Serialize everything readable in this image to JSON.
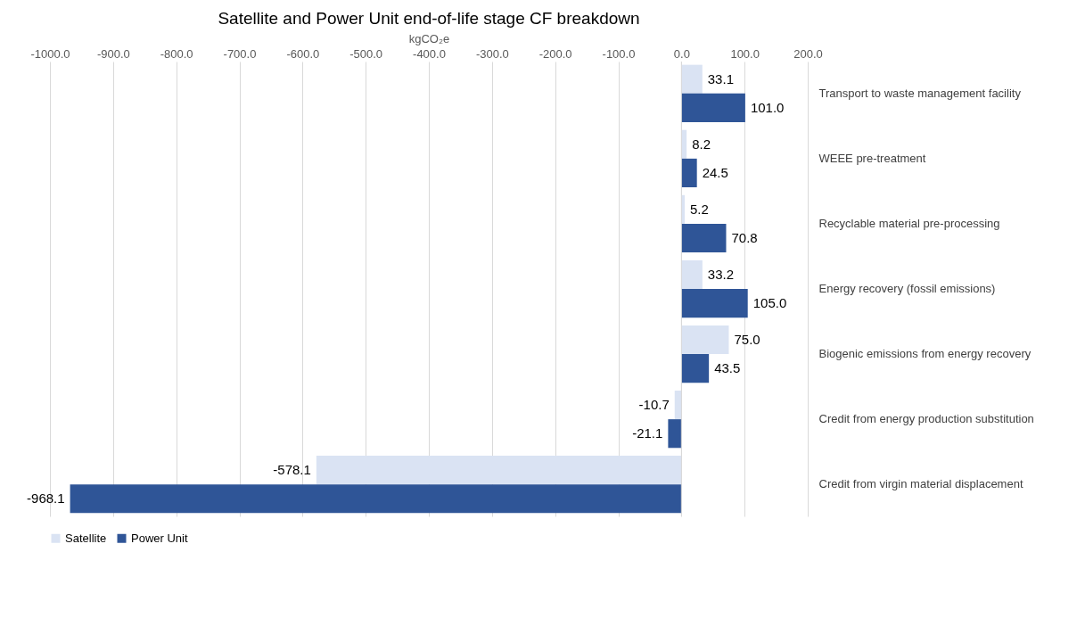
{
  "chart_data": {
    "type": "bar",
    "orientation": "horizontal",
    "title": "Satellite and Power Unit end-of-life stage CF breakdown",
    "xlabel": "kgCO₂e",
    "categories": [
      "Transport to waste management facility",
      "WEEE pre-treatment",
      "Recyclable material pre-processing",
      "Energy recovery (fossil emissions)",
      "Biogenic emissions from energy recovery",
      "Credit from energy production substitution",
      "Credit from virgin material displacement"
    ],
    "series": [
      {
        "name": "Satellite",
        "color": "#dae3f3",
        "values": [
          33.1,
          8.2,
          5.2,
          33.2,
          75.0,
          -10.7,
          -578.1
        ],
        "value_labels": [
          "33.1",
          "8.2",
          "5.2",
          "33.2",
          "75.0",
          "-10.7",
          "-578.1"
        ]
      },
      {
        "name": "Power Unit",
        "color": "#2f5597",
        "values": [
          101.0,
          24.5,
          70.8,
          105.0,
          43.5,
          -21.1,
          -968.1
        ],
        "value_labels": [
          "101.0",
          "24.5",
          "70.8",
          "105.0",
          "43.5",
          "-21.1",
          "-968.1"
        ]
      }
    ],
    "xlim": [
      -1000,
      200
    ],
    "xticks": [
      {
        "value": -1000,
        "label": "-1000.0"
      },
      {
        "value": -900,
        "label": "-900.0"
      },
      {
        "value": -800,
        "label": "-800.0"
      },
      {
        "value": -700,
        "label": "-700.0"
      },
      {
        "value": -600,
        "label": "-600.0"
      },
      {
        "value": -500,
        "label": "-500.0"
      },
      {
        "value": -400,
        "label": "-400.0"
      },
      {
        "value": -300,
        "label": "-300.0"
      },
      {
        "value": -200,
        "label": "-200.0"
      },
      {
        "value": -100,
        "label": "-100.0"
      },
      {
        "value": 0,
        "label": "0.0"
      },
      {
        "value": 100,
        "label": "100.0"
      },
      {
        "value": 200,
        "label": "200.0"
      }
    ],
    "grid": "x",
    "legend": "bottom"
  }
}
